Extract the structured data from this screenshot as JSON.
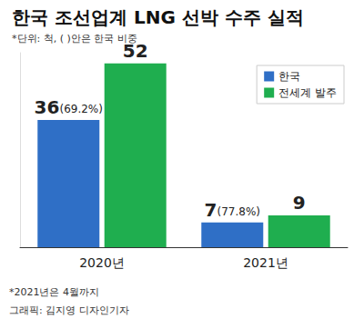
{
  "chart_data": {
    "type": "bar",
    "title": "한국 조선업계 LNG 선박 수주 실적",
    "subtitle": "*단위: 척, ( )안은 한국 비중",
    "categories": [
      "2020년",
      "2021년"
    ],
    "series": [
      {
        "name": "한국",
        "color": "#2f6fc6",
        "values": [
          36,
          7
        ],
        "value_labels": [
          "36(69.2%)",
          "7(77.8%)"
        ]
      },
      {
        "name": "전세계 발주",
        "color": "#1fae4f",
        "values": [
          52,
          9
        ]
      }
    ],
    "ylim": [
      0,
      55
    ],
    "grid": false,
    "legend": "top-right",
    "data_labels": true,
    "tick_labels": "x",
    "annotations": [
      "*2021년은 4월까지",
      "그래픽: 김지영 디자인기자"
    ]
  }
}
